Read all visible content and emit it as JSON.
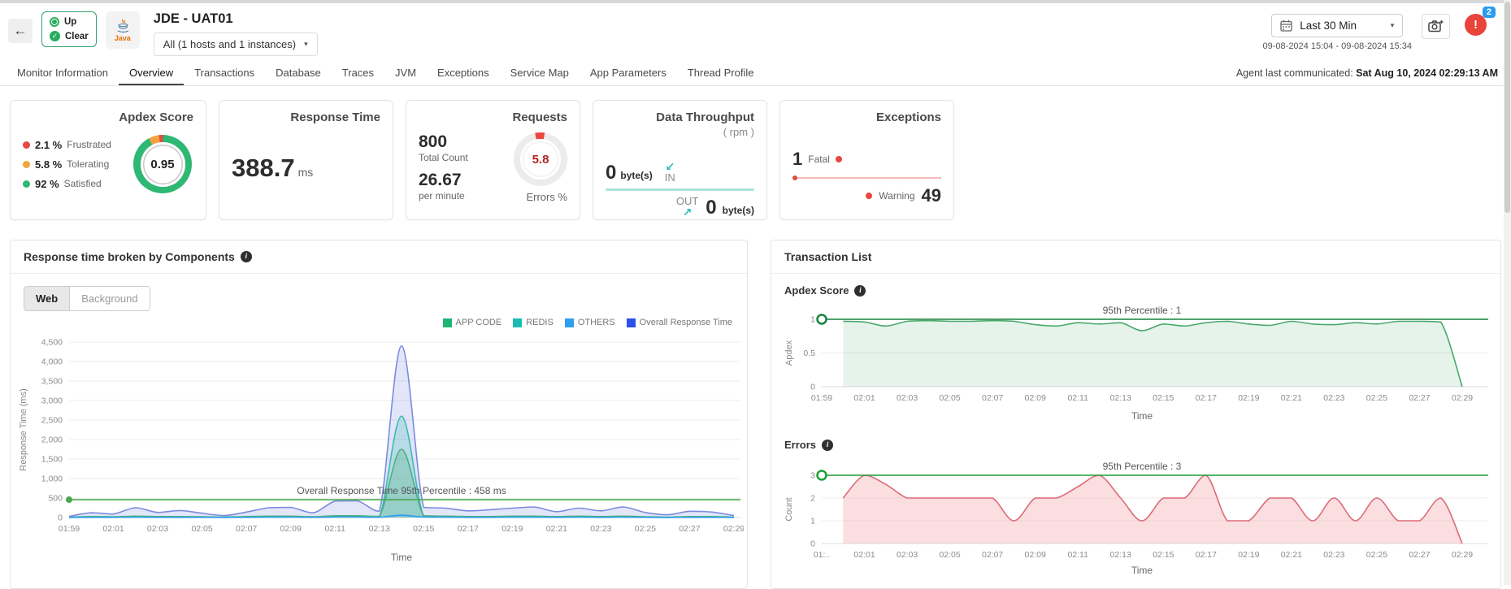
{
  "icons": {
    "back": "←",
    "check": "✓",
    "caret": "▾",
    "in_arrow": "↙",
    "out_arrow": "↗",
    "alert": "!",
    "info": "i"
  },
  "header": {
    "status": {
      "up_label": "Up",
      "clear_label": "Clear"
    },
    "monitor_type_label": "Java",
    "title": "JDE - UAT01",
    "scope_dropdown": "All (1 hosts and 1 instances)",
    "time_range": {
      "label": "Last 30 Min",
      "range": "09-08-2024 15:04 - 09-08-2024 15:34"
    },
    "notification_count": "2",
    "agent": {
      "label": "Agent last communicated: ",
      "value": "Sat Aug 10, 2024 02:29:13 AM"
    }
  },
  "tabs": [
    {
      "label": "Monitor Information",
      "active": false
    },
    {
      "label": "Overview",
      "active": true
    },
    {
      "label": "Transactions",
      "active": false
    },
    {
      "label": "Database",
      "active": false
    },
    {
      "label": "Traces",
      "active": false
    },
    {
      "label": "JVM",
      "active": false
    },
    {
      "label": "Exceptions",
      "active": false
    },
    {
      "label": "Service Map",
      "active": false
    },
    {
      "label": "App Parameters",
      "active": false
    },
    {
      "label": "Thread Profile",
      "active": false
    }
  ],
  "cards": {
    "apdex": {
      "title": "Apdex Score",
      "score": "0.95",
      "legend": [
        {
          "value": "2.1 %",
          "label": "Frustrated",
          "color": "#e8483f"
        },
        {
          "value": "5.8 %",
          "label": "Tolerating",
          "color": "#f2a33c"
        },
        {
          "value": "92 %",
          "label": "Satisfied",
          "color": "#2eb873"
        }
      ]
    },
    "response_time": {
      "title": "Response Time",
      "value": "388.7",
      "unit": "ms"
    },
    "requests": {
      "title": "Requests",
      "total": "800",
      "total_label": "Total Count",
      "rate": "26.67",
      "rate_label": "per minute",
      "errors_value": "5.8",
      "errors_label": "Errors %"
    },
    "throughput": {
      "title": "Data Throughput",
      "subtitle": "( rpm )",
      "in_value": "0",
      "in_unit": "byte(s)",
      "in_label": "IN",
      "out_label": "OUT",
      "out_value": "0",
      "out_unit": "byte(s)"
    },
    "exceptions": {
      "title": "Exceptions",
      "fatal_value": "1",
      "fatal_label": "Fatal",
      "warning_label": "Warning",
      "warning_value": "49"
    }
  },
  "left_panel": {
    "title": "Response time broken by Components",
    "toggle": {
      "web": "Web",
      "background": "Background"
    }
  },
  "right_panel": {
    "title": "Transaction List",
    "sections": {
      "apdex": {
        "title": "Apdex Score"
      },
      "errors": {
        "title": "Errors"
      }
    }
  },
  "chart_data": [
    {
      "id": "components",
      "type": "area",
      "title": "Response time broken by Components",
      "xlabel": "Time",
      "ylabel": "Response Time (ms)",
      "ylim": [
        0,
        4500
      ],
      "yticks": [
        {
          "v": 0,
          "label": "0"
        },
        {
          "v": 500,
          "label": "500"
        },
        {
          "v": 1000,
          "label": "1,000"
        },
        {
          "v": 1500,
          "label": "1,500"
        },
        {
          "v": 2000,
          "label": "2,000"
        },
        {
          "v": 2500,
          "label": "2,500"
        },
        {
          "v": 3000,
          "label": "3,000"
        },
        {
          "v": 3500,
          "label": "3,500"
        },
        {
          "v": 4000,
          "label": "4,000"
        },
        {
          "v": 4500,
          "label": "4,500"
        }
      ],
      "x_tick_step": 2,
      "x_ticks": [
        "01:59",
        "02:01",
        "02:03",
        "02:05",
        "02:07",
        "02:09",
        "02:11",
        "02:13",
        "02:15",
        "02:17",
        "02:19",
        "02:21",
        "02:23",
        "02:25",
        "02:27",
        "02:29"
      ],
      "legend_position": "top-right",
      "series": [
        {
          "name": "Overall Response Time",
          "legend_color": "#2b50ed",
          "line_color": "#7b8be0",
          "fill_color": "rgba(123,139,224,0.22)",
          "values": [
            30,
            120,
            90,
            250,
            130,
            180,
            110,
            50,
            140,
            250,
            260,
            120,
            420,
            430,
            160,
            4400,
            260,
            240,
            170,
            200,
            240,
            270,
            150,
            240,
            170,
            270,
            130,
            70,
            160,
            140,
            50
          ]
        },
        {
          "name": "REDIS",
          "legend_color": "#1abcb4",
          "line_color": "#3dbbb5",
          "fill_color": "rgba(61,187,181,0.25)",
          "values": [
            5,
            12,
            10,
            18,
            12,
            12,
            10,
            5,
            12,
            18,
            18,
            10,
            22,
            22,
            15,
            2600,
            22,
            18,
            12,
            12,
            18,
            18,
            12,
            18,
            12,
            18,
            10,
            5,
            12,
            12,
            5
          ]
        },
        {
          "name": "APP CODE",
          "legend_color": "#21b573",
          "line_color": "#4caf82",
          "fill_color": "rgba(76,175,130,0.30)",
          "values": [
            10,
            25,
            20,
            35,
            25,
            25,
            20,
            10,
            25,
            35,
            35,
            20,
            45,
            45,
            30,
            1750,
            45,
            35,
            25,
            25,
            35,
            35,
            25,
            35,
            25,
            35,
            20,
            10,
            25,
            25,
            10
          ]
        },
        {
          "name": "OTHERS",
          "legend_color": "#2d9ff0",
          "line_color": "#2d9ff0",
          "fill_color": "rgba(45,159,240,0.20)",
          "values": [
            2,
            5,
            4,
            8,
            5,
            5,
            4,
            2,
            5,
            8,
            8,
            4,
            10,
            10,
            6,
            60,
            10,
            8,
            5,
            5,
            8,
            8,
            5,
            8,
            5,
            8,
            4,
            2,
            5,
            5,
            2
          ]
        }
      ],
      "legend_order": [
        "APP CODE",
        "REDIS",
        "OTHERS",
        "Overall Response Time"
      ],
      "percentile_line": {
        "value": 458,
        "label": "Overall Response Time 95th Percentile : 458 ms",
        "color": "#4aa84e",
        "marker": "dot"
      }
    },
    {
      "id": "apdex",
      "type": "area",
      "xlabel": "Time",
      "ylabel": "Apdex",
      "ylim": [
        0,
        1
      ],
      "yticks": [
        {
          "v": 0,
          "label": "0"
        },
        {
          "v": 0.5,
          "label": "0.5"
        },
        {
          "v": 1,
          "label": "1"
        }
      ],
      "x_tick_step": 2,
      "x_ticks": [
        "01:59",
        "02:01",
        "02:03",
        "02:05",
        "02:07",
        "02:09",
        "02:11",
        "02:13",
        "02:15",
        "02:17",
        "02:19",
        "02:21",
        "02:23",
        "02:25",
        "02:27",
        "02:29"
      ],
      "series": [
        {
          "name": "Apdex",
          "line_color": "#4aa96c",
          "fill_color": "rgba(74,169,108,0.14)",
          "values": [
            null,
            0.97,
            0.96,
            0.9,
            0.97,
            0.98,
            0.97,
            0.97,
            0.98,
            0.97,
            0.92,
            0.9,
            0.95,
            0.93,
            0.95,
            0.83,
            0.93,
            0.9,
            0.95,
            0.97,
            0.93,
            0.91,
            0.97,
            0.93,
            0.92,
            0.95,
            0.93,
            0.97,
            0.97,
            0.96,
            0
          ]
        }
      ],
      "percentile_line": {
        "value": 1,
        "label": "95th Percentile : 1",
        "color": "#17823b",
        "marker": "ring"
      }
    },
    {
      "id": "errors",
      "type": "area",
      "xlabel": "Time",
      "ylabel": "Count",
      "ylim": [
        0,
        3
      ],
      "yticks": [
        {
          "v": 0,
          "label": "0"
        },
        {
          "v": 1,
          "label": "1"
        },
        {
          "v": 2,
          "label": "2"
        },
        {
          "v": 3,
          "label": "3"
        }
      ],
      "x_tick_step": 2,
      "x_ticks": [
        "01:..",
        "02:01",
        "02:03",
        "02:05",
        "02:07",
        "02:09",
        "02:11",
        "02:13",
        "02:15",
        "02:17",
        "02:19",
        "02:21",
        "02:23",
        "02:25",
        "02:27",
        "02:29"
      ],
      "series": [
        {
          "name": "Errors",
          "line_color": "#dd6b75",
          "fill_color": "rgba(240,160,165,0.35)",
          "values": [
            null,
            2,
            3,
            2.6,
            2,
            2,
            2,
            2,
            2,
            1,
            2,
            2,
            2.5,
            3,
            2,
            1,
            2,
            2,
            3,
            1,
            1,
            2,
            2,
            1,
            2,
            1,
            2,
            1,
            1,
            2,
            0
          ]
        }
      ],
      "percentile_line": {
        "value": 3,
        "label": "95th Percentile : 3",
        "color": "#1e9e3a",
        "marker": "ring"
      }
    }
  ]
}
